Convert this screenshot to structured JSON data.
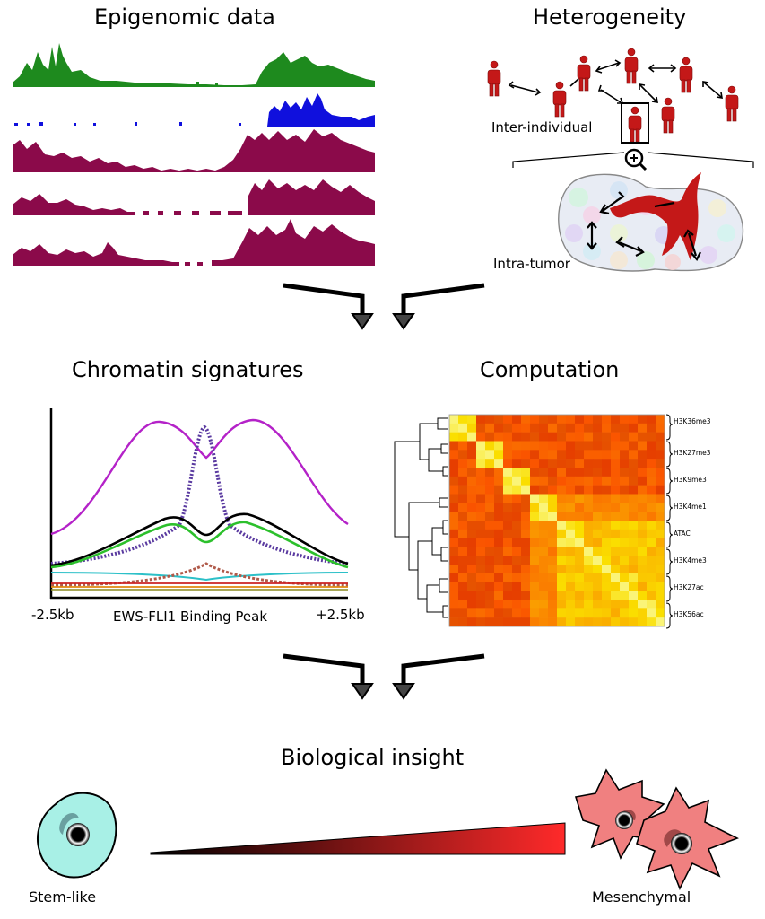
{
  "sections": {
    "epigenomic": {
      "title": "Epigenomic data"
    },
    "heterogeneity": {
      "title": "Heterogeneity",
      "inter_label": "Inter-individual",
      "intra_label": "Intra-tumor"
    },
    "chromatin": {
      "title": "Chromatin signatures",
      "x_left": "-2.5kb",
      "x_center": "EWS-FLI1 Binding Peak",
      "x_right": "+2.5kb"
    },
    "computation": {
      "title": "Computation",
      "heatmap_labels": [
        "H3K36me3",
        "H3K27me3",
        "H3K9me3",
        "H3K4me1",
        "ATAC",
        "H3K4me3",
        "H3K27ac",
        "H3K56ac"
      ]
    },
    "insight": {
      "title": "Biological insight",
      "left_label": "Stem-like",
      "right_label": "Mesenchymal"
    }
  },
  "colors": {
    "track_green": "#1e8a1e",
    "track_blue": "#1010dd",
    "track_maroon": "#8b0a4a",
    "person_red": "#c41818",
    "profile_magenta": "#b422c8",
    "profile_purple": "#5a3aa0",
    "profile_black": "#000000",
    "profile_green": "#2cc02c",
    "profile_cyan": "#2cc0c8",
    "profile_brown_dotted": "#b05a4a",
    "stem_cell": "#a8f0e6",
    "mesenchymal_cell": "#f08080"
  }
}
